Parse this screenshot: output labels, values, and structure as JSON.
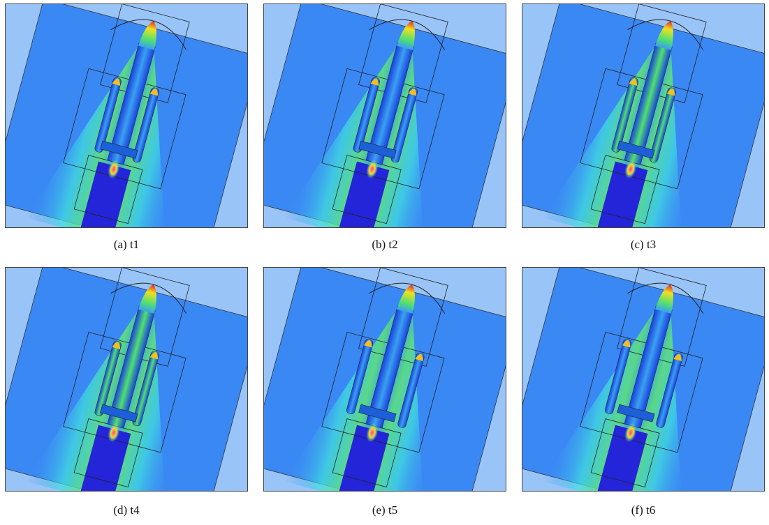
{
  "panels": [
    {
      "caption": "(a) t1"
    },
    {
      "caption": "(b) t2"
    },
    {
      "caption": "(c) t3"
    },
    {
      "caption": "(d) t4"
    },
    {
      "caption": "(e) t5"
    },
    {
      "caption": "(f) t6"
    }
  ]
}
